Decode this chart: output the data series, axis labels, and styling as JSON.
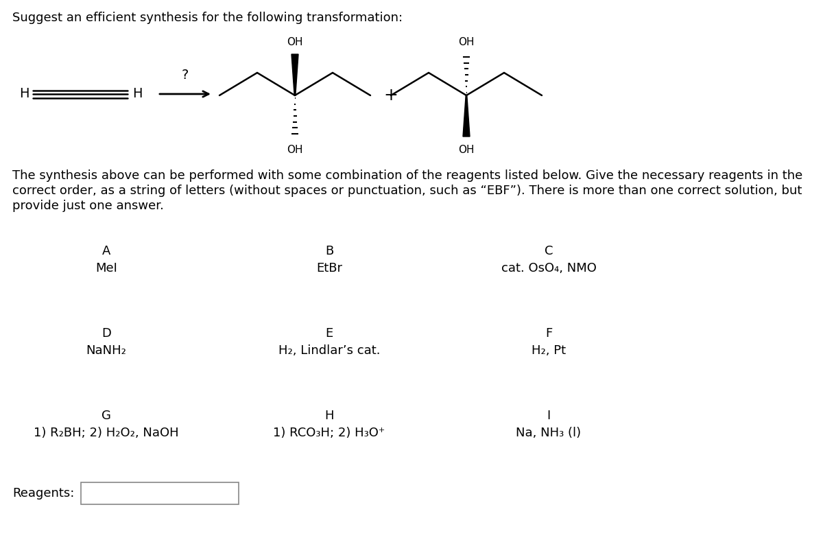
{
  "title": "Suggest an efficient synthesis for the following transformation:",
  "bg_color": "#ffffff",
  "text_color": "#000000",
  "paragraph": "The synthesis above can be performed with some combination of the reagents listed below. Give the necessary reagents in the\ncorrect order, as a string of letters (without spaces or punctuation, such as “EBF”). There is more than one correct solution, but\nprovide just one answer.",
  "reagents_label": "Reagents:",
  "reagent_letters": [
    "A",
    "B",
    "C",
    "D",
    "E",
    "F",
    "G",
    "H",
    "I"
  ],
  "reagent_names": [
    "MeI",
    "EtBr",
    "cat. OsO₄, NMO",
    "NaNH₂",
    "H₂, Lindlar’s cat.",
    "H₂, Pt",
    "1) R₂BH; 2) H₂O₂, NaOH",
    "1) RCO₃H; 2) H₃O⁺",
    "Na, NH₃ (l)"
  ],
  "reagent_cols": [
    0,
    1,
    2,
    0,
    1,
    2,
    0,
    1,
    2
  ],
  "reagent_rows": [
    0,
    0,
    0,
    1,
    1,
    1,
    2,
    2,
    2
  ],
  "font_size_title": 13,
  "font_size_paragraph": 13,
  "font_size_reagent_letter": 13,
  "font_size_reagent_name": 13
}
